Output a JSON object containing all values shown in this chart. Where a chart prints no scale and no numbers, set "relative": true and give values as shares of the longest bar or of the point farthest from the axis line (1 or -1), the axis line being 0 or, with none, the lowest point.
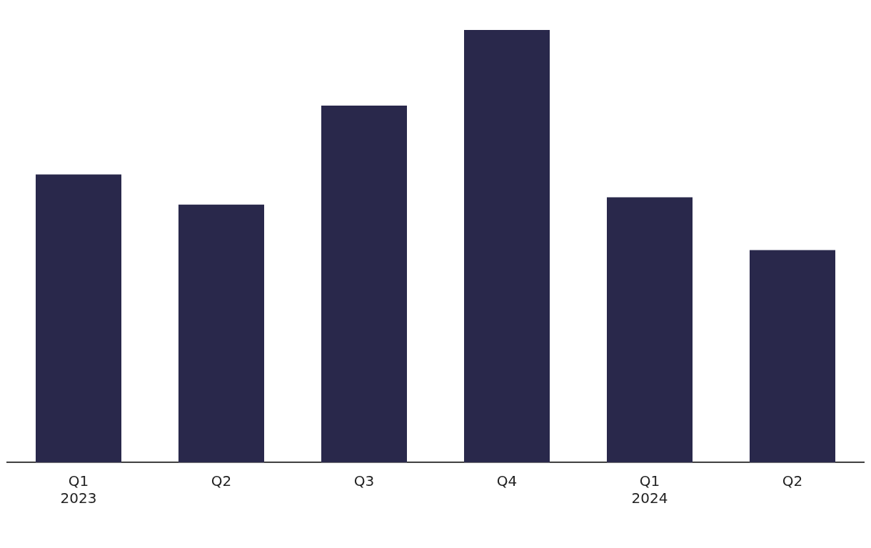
{
  "chart_data": {
    "type": "bar",
    "relative": true,
    "categories": [
      "Q1\n2023",
      "Q2",
      "Q3",
      "Q4",
      "Q1\n2024",
      "Q2"
    ],
    "values": [
      0.666,
      0.596,
      0.825,
      1,
      0.613,
      0.491
    ],
    "color": "#29284b",
    "grid": false,
    "legend": false
  }
}
